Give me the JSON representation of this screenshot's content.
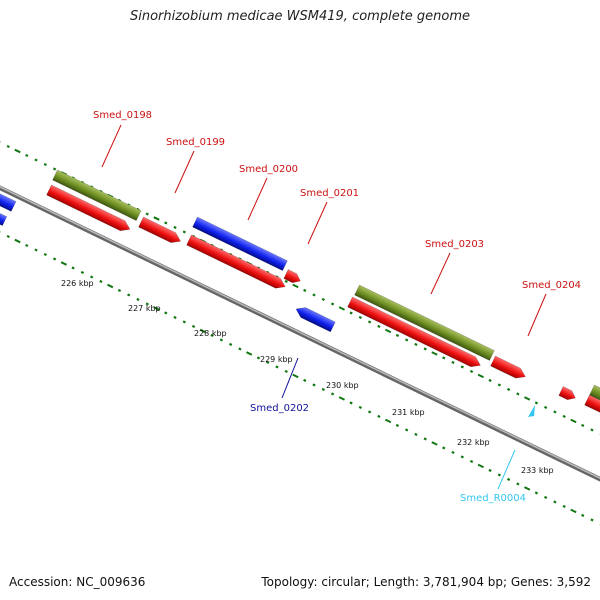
{
  "title": "Sinorhizobium medicae WSM419, complete genome",
  "footer": {
    "accession": "Accession: NC_009636",
    "topology": "Topology: circular; Length: 3,781,904 bp; Genes: 3,592"
  },
  "colors": {
    "cds_forward": "#ee1111",
    "cds_reverse": "#1122ee",
    "gene": "#6f8f22",
    "rna": "#33c6ee",
    "backbone": "#888888",
    "ticks": "#117711",
    "forward_label": "#cc1111",
    "reverse_label": "#111199",
    "rna_label": "#33c6ee"
  },
  "ticks": [
    {
      "label": "226 kbp"
    },
    {
      "label": "227 kbp"
    },
    {
      "label": "228 kbp"
    },
    {
      "label": "229 kbp"
    },
    {
      "label": "230 kbp"
    },
    {
      "label": "231 kbp"
    },
    {
      "label": "232 kbp"
    },
    {
      "label": "233 kbp"
    }
  ],
  "features": [
    {
      "name": "Smed_0198",
      "strand": "forward",
      "type": "CDS"
    },
    {
      "name": "Smed_0199",
      "strand": "forward",
      "type": "CDS"
    },
    {
      "name": "Smed_0200",
      "strand": "forward",
      "type": "CDS"
    },
    {
      "name": "Smed_0201",
      "strand": "forward",
      "type": "CDS"
    },
    {
      "name": "Smed_0202",
      "strand": "reverse",
      "type": "CDS"
    },
    {
      "name": "Smed_0203",
      "strand": "forward",
      "type": "CDS"
    },
    {
      "name": "Smed_0204",
      "strand": "forward",
      "type": "CDS"
    },
    {
      "name": "Smed_R0004",
      "strand": "reverse",
      "type": "RNA"
    }
  ]
}
